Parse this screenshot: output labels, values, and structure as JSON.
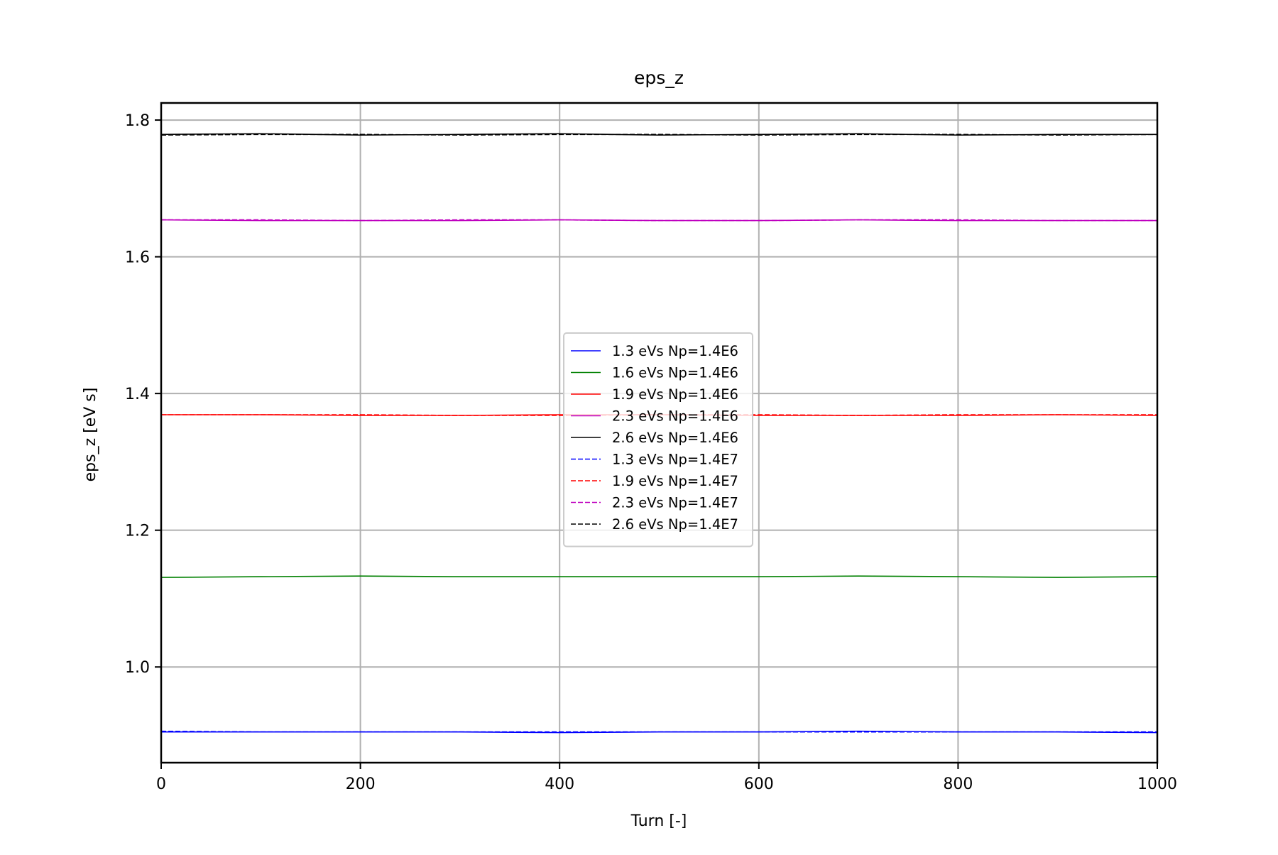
{
  "chart_data": {
    "type": "line",
    "title": "eps_z",
    "xlabel": "Turn [-]",
    "ylabel": "eps_z [eV s]",
    "xlim": [
      0,
      1000
    ],
    "ylim": [
      0.86,
      1.825
    ],
    "xticks": [
      0,
      200,
      400,
      600,
      800,
      1000
    ],
    "xtick_labels": [
      "0",
      "200",
      "400",
      "600",
      "800",
      "1000"
    ],
    "yticks": [
      1.0,
      1.2,
      1.4,
      1.6,
      1.8
    ],
    "ytick_labels": [
      "1.0",
      "1.2",
      "1.4",
      "1.6",
      "1.8"
    ],
    "grid": true,
    "legend_position": "center",
    "series": [
      {
        "name": "1.3 eVs Np=1.4E6",
        "color": "#0000ff",
        "dash": "solid",
        "x": [
          0,
          100,
          200,
          300,
          400,
          500,
          600,
          700,
          800,
          900,
          1000
        ],
        "y": [
          0.905,
          0.905,
          0.905,
          0.905,
          0.904,
          0.905,
          0.905,
          0.906,
          0.905,
          0.905,
          0.904
        ]
      },
      {
        "name": "1.6 eVs Np=1.4E6",
        "color": "#008000",
        "dash": "solid",
        "x": [
          0,
          100,
          200,
          300,
          400,
          500,
          600,
          700,
          800,
          900,
          1000
        ],
        "y": [
          1.131,
          1.132,
          1.133,
          1.132,
          1.132,
          1.132,
          1.132,
          1.133,
          1.132,
          1.131,
          1.132
        ]
      },
      {
        "name": "1.9 eVs Np=1.4E6",
        "color": "#ff0000",
        "dash": "solid",
        "x": [
          0,
          100,
          200,
          300,
          400,
          500,
          600,
          700,
          800,
          900,
          1000
        ],
        "y": [
          1.369,
          1.369,
          1.368,
          1.368,
          1.369,
          1.369,
          1.368,
          1.368,
          1.368,
          1.369,
          1.368
        ]
      },
      {
        "name": "2.3 eVs Np=1.4E6",
        "color": "#bf00bf",
        "dash": "solid",
        "x": [
          0,
          100,
          200,
          300,
          400,
          500,
          600,
          700,
          800,
          900,
          1000
        ],
        "y": [
          1.654,
          1.653,
          1.653,
          1.653,
          1.654,
          1.653,
          1.653,
          1.654,
          1.653,
          1.653,
          1.653
        ]
      },
      {
        "name": "2.6 eVs Np=1.4E6",
        "color": "#000000",
        "dash": "solid",
        "x": [
          0,
          100,
          200,
          300,
          400,
          500,
          600,
          700,
          800,
          900,
          1000
        ],
        "y": [
          1.779,
          1.78,
          1.778,
          1.779,
          1.78,
          1.778,
          1.779,
          1.78,
          1.778,
          1.779,
          1.779
        ]
      },
      {
        "name": "1.3 eVs Np=1.4E7",
        "color": "#0000ff",
        "dash": "dashed",
        "x": [
          0,
          100,
          200,
          300,
          400,
          500,
          600,
          700,
          800,
          900,
          1000
        ],
        "y": [
          0.906,
          0.905,
          0.905,
          0.905,
          0.905,
          0.905,
          0.905,
          0.905,
          0.905,
          0.905,
          0.905
        ]
      },
      {
        "name": "1.9 eVs Np=1.4E7",
        "color": "#ff0000",
        "dash": "dashed",
        "x": [
          0,
          100,
          200,
          300,
          400,
          500,
          600,
          700,
          800,
          900,
          1000
        ],
        "y": [
          1.369,
          1.369,
          1.369,
          1.368,
          1.368,
          1.369,
          1.369,
          1.368,
          1.369,
          1.369,
          1.369
        ]
      },
      {
        "name": "2.3 eVs Np=1.4E7",
        "color": "#bf00bf",
        "dash": "dashed",
        "x": [
          0,
          100,
          200,
          300,
          400,
          500,
          600,
          700,
          800,
          900,
          1000
        ],
        "y": [
          1.654,
          1.654,
          1.653,
          1.654,
          1.654,
          1.653,
          1.653,
          1.654,
          1.654,
          1.653,
          1.653
        ]
      },
      {
        "name": "2.6 eVs Np=1.4E7",
        "color": "#000000",
        "dash": "dashed",
        "x": [
          0,
          100,
          200,
          300,
          400,
          500,
          600,
          700,
          800,
          900,
          1000
        ],
        "y": [
          1.778,
          1.779,
          1.779,
          1.778,
          1.779,
          1.779,
          1.778,
          1.779,
          1.779,
          1.778,
          1.779
        ]
      }
    ]
  }
}
